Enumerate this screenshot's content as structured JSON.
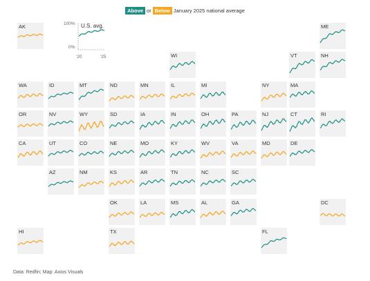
{
  "legend": {
    "above": "Above",
    "or": "or",
    "below": "Below",
    "tail": "January 2025 national average"
  },
  "colors": {
    "above": "#1f8f86",
    "below": "#f5a623",
    "tile_bg": "#f1f1f1"
  },
  "key": {
    "title": "U.S. avg.",
    "y_top": "100%",
    "y_bottom": "0%",
    "x_start": "'20",
    "x_end": "'25"
  },
  "footer": "Data: Redfin; Map: Axios Visuals",
  "chart_data": {
    "type": "line",
    "title": "",
    "x_range": [
      "2020",
      "2025"
    ],
    "ylim": [
      0,
      100
    ],
    "ylabel": "%",
    "series": [
      {
        "name": "U.S. avg.",
        "status": "above",
        "y_start": 55,
        "y_end": 82,
        "wiggle": 3
      },
      {
        "name": "AK",
        "status": "below",
        "y_start": 55,
        "y_end": 68,
        "wiggle": 4
      },
      {
        "name": "ME",
        "status": "above",
        "y_start": 25,
        "y_end": 95,
        "wiggle": 5
      },
      {
        "name": "WI",
        "status": "above",
        "y_start": 40,
        "y_end": 75,
        "wiggle": 7
      },
      {
        "name": "VT",
        "status": "above",
        "y_start": 20,
        "y_end": 88,
        "wiggle": 7
      },
      {
        "name": "NH",
        "status": "above",
        "y_start": 35,
        "y_end": 90,
        "wiggle": 6
      },
      {
        "name": "WA",
        "status": "below",
        "y_start": 45,
        "y_end": 60,
        "wiggle": 7
      },
      {
        "name": "ID",
        "status": "above",
        "y_start": 40,
        "y_end": 72,
        "wiggle": 4
      },
      {
        "name": "MT",
        "status": "above",
        "y_start": 35,
        "y_end": 90,
        "wiggle": 5
      },
      {
        "name": "ND",
        "status": "below",
        "y_start": 30,
        "y_end": 50,
        "wiggle": 7
      },
      {
        "name": "MN",
        "status": "below",
        "y_start": 40,
        "y_end": 58,
        "wiggle": 7
      },
      {
        "name": "IL",
        "status": "below",
        "y_start": 40,
        "y_end": 63,
        "wiggle": 7
      },
      {
        "name": "MI",
        "status": "above",
        "y_start": 45,
        "y_end": 68,
        "wiggle": 9
      },
      {
        "name": "NY",
        "status": "below",
        "y_start": 30,
        "y_end": 62,
        "wiggle": 8
      },
      {
        "name": "MA",
        "status": "above",
        "y_start": 50,
        "y_end": 75,
        "wiggle": 8
      },
      {
        "name": "OR",
        "status": "below",
        "y_start": 45,
        "y_end": 55,
        "wiggle": 6
      },
      {
        "name": "NV",
        "status": "above",
        "y_start": 50,
        "y_end": 72,
        "wiggle": 5
      },
      {
        "name": "WY",
        "status": "below",
        "y_start": 30,
        "y_end": 60,
        "wiggle": 16
      },
      {
        "name": "SD",
        "status": "above",
        "y_start": 40,
        "y_end": 70,
        "wiggle": 7
      },
      {
        "name": "IA",
        "status": "above",
        "y_start": 35,
        "y_end": 72,
        "wiggle": 9
      },
      {
        "name": "IN",
        "status": "above",
        "y_start": 40,
        "y_end": 75,
        "wiggle": 9
      },
      {
        "name": "OH",
        "status": "above",
        "y_start": 40,
        "y_end": 78,
        "wiggle": 10
      },
      {
        "name": "PA",
        "status": "above",
        "y_start": 35,
        "y_end": 72,
        "wiggle": 10
      },
      {
        "name": "NJ",
        "status": "above",
        "y_start": 30,
        "y_end": 82,
        "wiggle": 10
      },
      {
        "name": "CT",
        "status": "above",
        "y_start": 25,
        "y_end": 85,
        "wiggle": 11
      },
      {
        "name": "RI",
        "status": "above",
        "y_start": 40,
        "y_end": 82,
        "wiggle": 8
      },
      {
        "name": "CA",
        "status": "below",
        "y_start": 40,
        "y_end": 62,
        "wiggle": 9
      },
      {
        "name": "UT",
        "status": "above",
        "y_start": 45,
        "y_end": 70,
        "wiggle": 5
      },
      {
        "name": "CO",
        "status": "above",
        "y_start": 45,
        "y_end": 63,
        "wiggle": 6
      },
      {
        "name": "NE",
        "status": "above",
        "y_start": 45,
        "y_end": 68,
        "wiggle": 7
      },
      {
        "name": "MO",
        "status": "above",
        "y_start": 40,
        "y_end": 70,
        "wiggle": 8
      },
      {
        "name": "KY",
        "status": "above",
        "y_start": 40,
        "y_end": 70,
        "wiggle": 8
      },
      {
        "name": "WV",
        "status": "below",
        "y_start": 35,
        "y_end": 62,
        "wiggle": 8
      },
      {
        "name": "VA",
        "status": "below",
        "y_start": 40,
        "y_end": 62,
        "wiggle": 8
      },
      {
        "name": "MD",
        "status": "below",
        "y_start": 35,
        "y_end": 60,
        "wiggle": 8
      },
      {
        "name": "DE",
        "status": "above",
        "y_start": 45,
        "y_end": 72,
        "wiggle": 7
      },
      {
        "name": "AZ",
        "status": "above",
        "y_start": 35,
        "y_end": 62,
        "wiggle": 4
      },
      {
        "name": "NM",
        "status": "below",
        "y_start": 30,
        "y_end": 58,
        "wiggle": 6
      },
      {
        "name": "KS",
        "status": "below",
        "y_start": 40,
        "y_end": 62,
        "wiggle": 8
      },
      {
        "name": "AR",
        "status": "above",
        "y_start": 40,
        "y_end": 68,
        "wiggle": 7
      },
      {
        "name": "TN",
        "status": "above",
        "y_start": 40,
        "y_end": 65,
        "wiggle": 7
      },
      {
        "name": "NC",
        "status": "above",
        "y_start": 40,
        "y_end": 68,
        "wiggle": 7
      },
      {
        "name": "SC",
        "status": "above",
        "y_start": 40,
        "y_end": 68,
        "wiggle": 7
      },
      {
        "name": "OK",
        "status": "below",
        "y_start": 35,
        "y_end": 55,
        "wiggle": 7
      },
      {
        "name": "LA",
        "status": "below",
        "y_start": 35,
        "y_end": 52,
        "wiggle": 7
      },
      {
        "name": "MS",
        "status": "above",
        "y_start": 35,
        "y_end": 68,
        "wiggle": 8
      },
      {
        "name": "AL",
        "status": "below",
        "y_start": 35,
        "y_end": 58,
        "wiggle": 8
      },
      {
        "name": "GA",
        "status": "above",
        "y_start": 45,
        "y_end": 75,
        "wiggle": 7
      },
      {
        "name": "DC",
        "status": "below",
        "y_start": 45,
        "y_end": 42,
        "wiggle": 6
      },
      {
        "name": "HI",
        "status": "below",
        "y_start": 40,
        "y_end": 60,
        "wiggle": 5
      },
      {
        "name": "TX",
        "status": "below",
        "y_start": 35,
        "y_end": 52,
        "wiggle": 8
      },
      {
        "name": "FL",
        "status": "above",
        "y_start": 25,
        "y_end": 78,
        "wiggle": 4
      }
    ]
  }
}
